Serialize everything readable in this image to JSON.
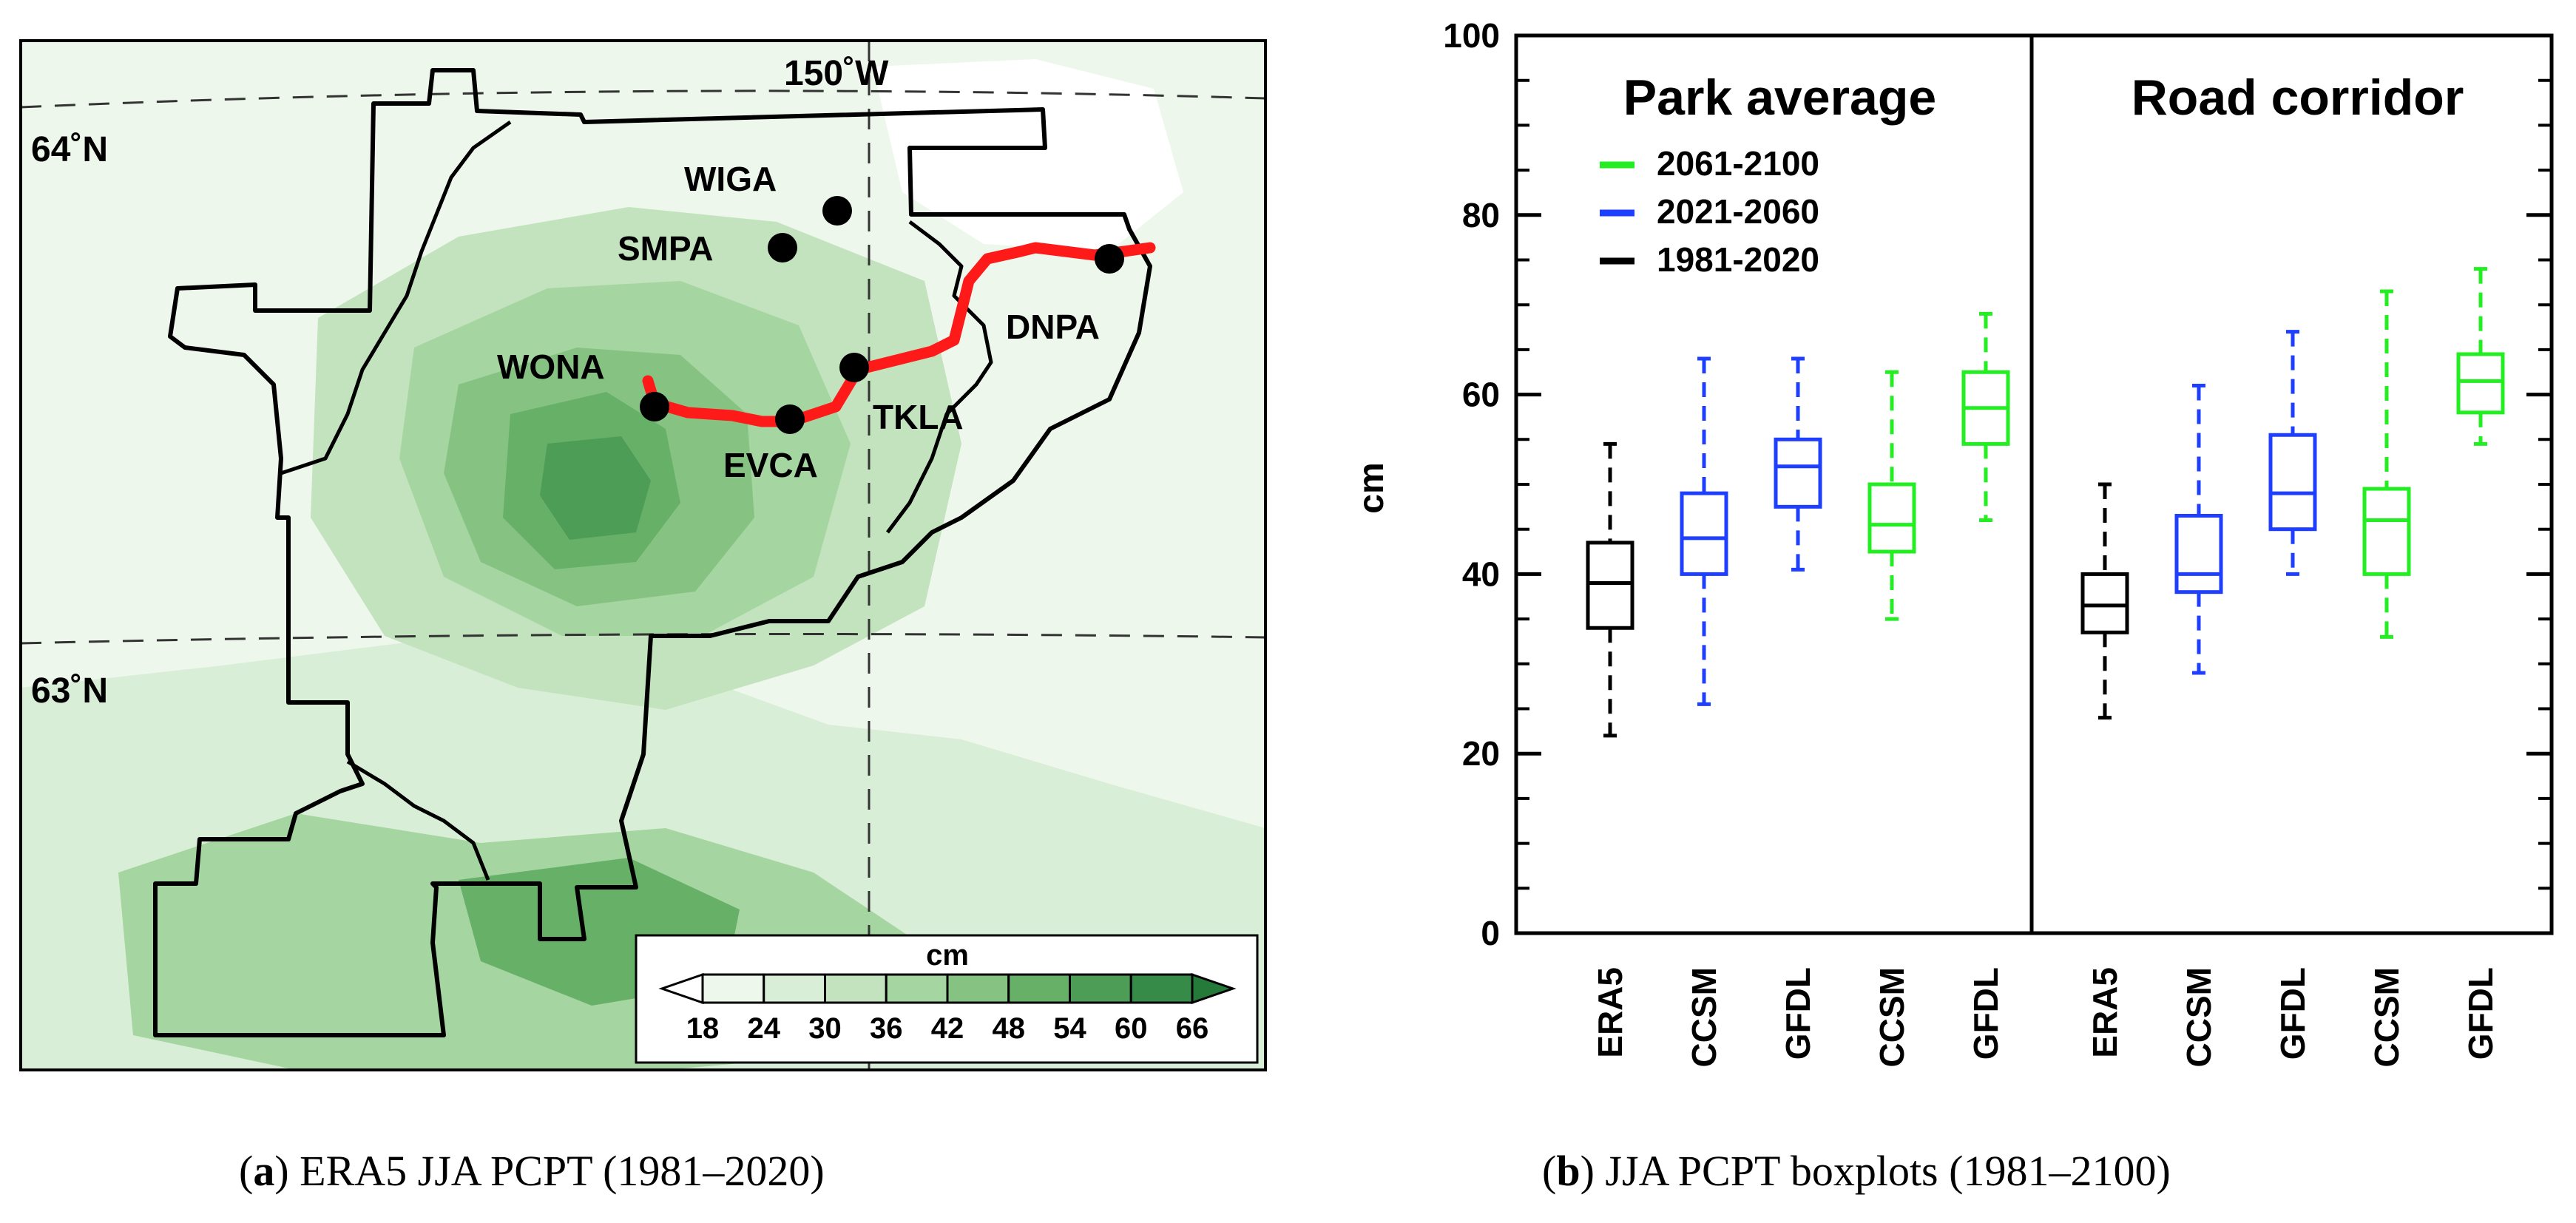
{
  "panel_a": {
    "caption_letter": "a",
    "caption_text": " ERA5 JJA PCPT (1981–2020)",
    "lon_label": "150˚W",
    "lat_labels": [
      "64˚N",
      "63˚N"
    ],
    "stations": [
      "WIGA",
      "SMPA",
      "WONA",
      "EVCA",
      "TKLA",
      "DNPA"
    ],
    "colorbar": {
      "unit": "cm",
      "ticks": [
        "18",
        "24",
        "30",
        "36",
        "42",
        "48",
        "54",
        "60",
        "66"
      ],
      "colors": [
        "#ffffff",
        "#eef7ec",
        "#d9eed6",
        "#c2e3bd",
        "#a5d5a0",
        "#86c383",
        "#67b068",
        "#4d9d57",
        "#358b47",
        "#257a39"
      ]
    },
    "route_color": "#ff1a1a"
  },
  "panel_b": {
    "caption_letter": "b",
    "caption_text": " JJA PCPT boxplots (1981–2100)",
    "chart_data": {
      "type": "boxplot",
      "ylabel": "cm",
      "ylim": [
        0,
        100
      ],
      "yticks": [
        "0",
        "20",
        "40",
        "60",
        "80",
        "100"
      ],
      "groups": [
        "Park average",
        "Road corridor"
      ],
      "legend": [
        {
          "label": "2061-2100",
          "color": "#22ee22"
        },
        {
          "label": "2021-2060",
          "color": "#1f3fff"
        },
        {
          "label": "1981-2020",
          "color": "#000000"
        }
      ],
      "boxes": [
        {
          "group": "Park average",
          "label": "ERA5",
          "period": "1981-2020",
          "color": "#000000",
          "min": 22,
          "q1": 34,
          "median": 39,
          "q3": 43.5,
          "max": 54.5
        },
        {
          "group": "Park average",
          "label": "CCSM",
          "period": "2021-2060",
          "color": "#1f3fff",
          "min": 25.5,
          "q1": 40,
          "median": 44,
          "q3": 49,
          "max": 64
        },
        {
          "group": "Park average",
          "label": "GFDL",
          "period": "2021-2060",
          "color": "#1f3fff",
          "min": 40.5,
          "q1": 47.5,
          "median": 52,
          "q3": 55,
          "max": 64
        },
        {
          "group": "Park average",
          "label": "CCSM",
          "period": "2061-2100",
          "color": "#22ee22",
          "min": 35,
          "q1": 42.5,
          "median": 45.5,
          "q3": 50,
          "max": 62.5
        },
        {
          "group": "Park average",
          "label": "GFDL",
          "period": "2061-2100",
          "color": "#22ee22",
          "min": 46,
          "q1": 54.5,
          "median": 58.5,
          "q3": 62.5,
          "max": 69
        },
        {
          "group": "Road corridor",
          "label": "ERA5",
          "period": "1981-2020",
          "color": "#000000",
          "min": 24,
          "q1": 33.5,
          "median": 36.5,
          "q3": 40,
          "max": 50
        },
        {
          "group": "Road corridor",
          "label": "CCSM",
          "period": "2021-2060",
          "color": "#1f3fff",
          "min": 29,
          "q1": 38,
          "median": 40,
          "q3": 46.5,
          "max": 61
        },
        {
          "group": "Road corridor",
          "label": "GFDL",
          "period": "2021-2060",
          "color": "#1f3fff",
          "min": 40,
          "q1": 45,
          "median": 49,
          "q3": 55.5,
          "max": 67
        },
        {
          "group": "Road corridor",
          "label": "CCSM",
          "period": "2061-2100",
          "color": "#22ee22",
          "min": 33,
          "q1": 40,
          "median": 46,
          "q3": 49.5,
          "max": 71.5
        },
        {
          "group": "Road corridor",
          "label": "GFDL",
          "period": "2061-2100",
          "color": "#22ee22",
          "min": 54.5,
          "q1": 58,
          "median": 61.5,
          "q3": 64.5,
          "max": 74
        }
      ]
    }
  }
}
